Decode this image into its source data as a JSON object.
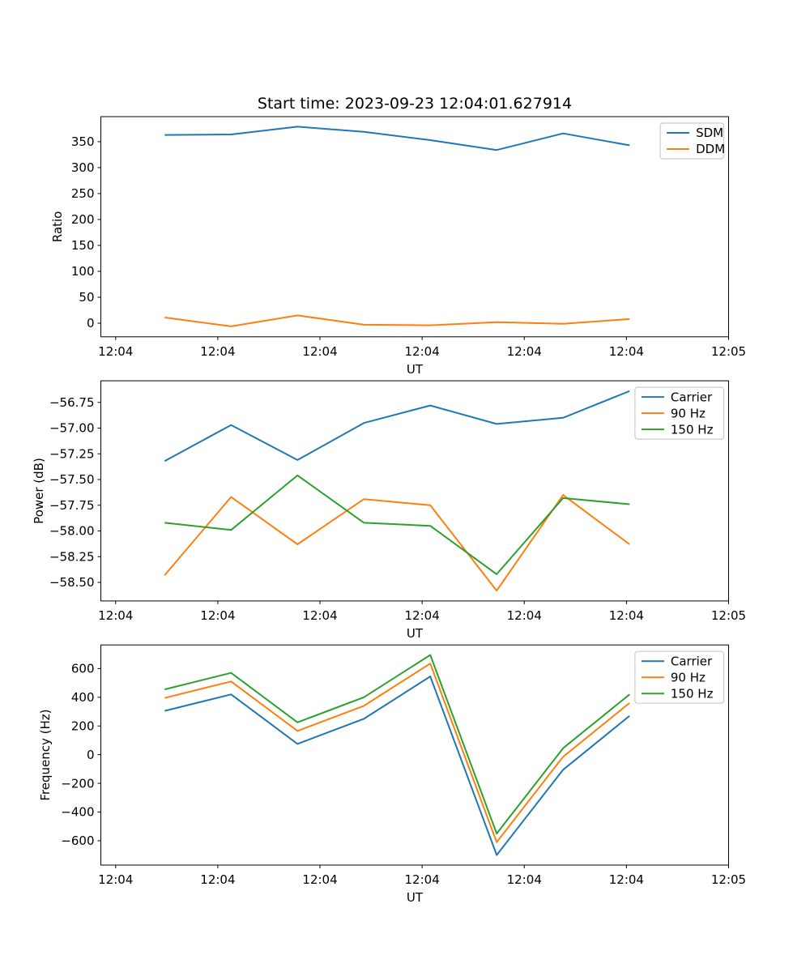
{
  "figure": {
    "title": "Start time: 2023-09-23 12:04:01.627914",
    "background": "#ffffff"
  },
  "palette": {
    "C0": "#1f77b4",
    "C1": "#ff7f0e",
    "C2": "#2ca02c",
    "axis": "#000000",
    "legend_border": "#cccccc"
  },
  "x_shared": {
    "label": "UT",
    "xlim_s": [
      -1.45,
      60.0
    ],
    "tick_positions_s": [
      0,
      10,
      20,
      30,
      40,
      50,
      60
    ],
    "tick_labels": [
      "12:04",
      "12:04",
      "12:04",
      "12:04",
      "12:04",
      "12:04",
      "12:05"
    ],
    "sample_times_s": [
      4.8,
      11.3,
      17.8,
      24.3,
      30.8,
      37.3,
      43.8,
      50.3
    ]
  },
  "chart_data": [
    {
      "type": "line",
      "id": "ratio",
      "title": "Start time: 2023-09-23 12:04:01.627914",
      "xlabel": "UT",
      "ylabel": "Ratio",
      "ylim": [
        -26.2,
        398.3
      ],
      "yticks": [
        0,
        50,
        100,
        150,
        200,
        250,
        300,
        350
      ],
      "ytick_labels": [
        "0",
        "50",
        "100",
        "150",
        "200",
        "250",
        "300",
        "350"
      ],
      "grid": false,
      "legend_loc": "upper right",
      "x_s": [
        4.8,
        11.3,
        17.8,
        24.3,
        30.8,
        37.3,
        43.8,
        50.3
      ],
      "series": [
        {
          "name": "SDM",
          "color": "C0",
          "values": [
            363,
            364,
            379,
            369,
            353,
            334,
            366,
            343
          ]
        },
        {
          "name": "DDM",
          "color": "C1",
          "values": [
            11,
            -6,
            15,
            -3,
            -4,
            2,
            -1,
            8
          ]
        }
      ]
    },
    {
      "type": "line",
      "id": "power",
      "title": "",
      "xlabel": "UT",
      "ylabel": "Power (dB)",
      "ylim": [
        -58.68,
        -56.54
      ],
      "yticks": [
        -58.5,
        -58.25,
        -58.0,
        -57.75,
        -57.5,
        -57.25,
        -57.0,
        -56.75
      ],
      "ytick_labels": [
        "−58.50",
        "−58.25",
        "−58.00",
        "−57.75",
        "−57.50",
        "−57.25",
        "−57.00",
        "−56.75"
      ],
      "grid": false,
      "legend_loc": "upper right",
      "x_s": [
        4.8,
        11.3,
        17.8,
        24.3,
        30.8,
        37.3,
        43.8,
        50.3
      ],
      "series": [
        {
          "name": "Carrier",
          "color": "C0",
          "values": [
            -57.32,
            -56.97,
            -57.31,
            -56.95,
            -56.78,
            -56.96,
            -56.9,
            -56.64
          ]
        },
        {
          "name": "90 Hz",
          "color": "C1",
          "values": [
            -58.43,
            -57.67,
            -58.13,
            -57.69,
            -57.75,
            -58.58,
            -57.65,
            -58.13
          ]
        },
        {
          "name": "150 Hz",
          "color": "C2",
          "values": [
            -57.92,
            -57.99,
            -57.46,
            -57.92,
            -57.95,
            -58.42,
            -57.68,
            -57.74
          ]
        }
      ]
    },
    {
      "type": "line",
      "id": "frequency",
      "title": "",
      "xlabel": "UT",
      "ylabel": "Frequency (Hz)",
      "ylim": [
        -769.8,
        764.8
      ],
      "yticks": [
        -600,
        -400,
        -200,
        0,
        200,
        400,
        600
      ],
      "ytick_labels": [
        "−600",
        "−400",
        "−200",
        "0",
        "200",
        "400",
        "600"
      ],
      "grid": false,
      "legend_loc": "upper right",
      "x_s": [
        4.8,
        11.3,
        17.8,
        24.3,
        30.8,
        37.3,
        43.8,
        50.3
      ],
      "series": [
        {
          "name": "Carrier",
          "color": "C0",
          "values": [
            305,
            420,
            75,
            250,
            545,
            -700,
            -105,
            270
          ]
        },
        {
          "name": "90 Hz",
          "color": "C1",
          "values": [
            395,
            510,
            165,
            340,
            635,
            -610,
            -15,
            360
          ]
        },
        {
          "name": "150 Hz",
          "color": "C2",
          "values": [
            455,
            570,
            225,
            400,
            695,
            -550,
            45,
            420
          ]
        }
      ]
    }
  ]
}
